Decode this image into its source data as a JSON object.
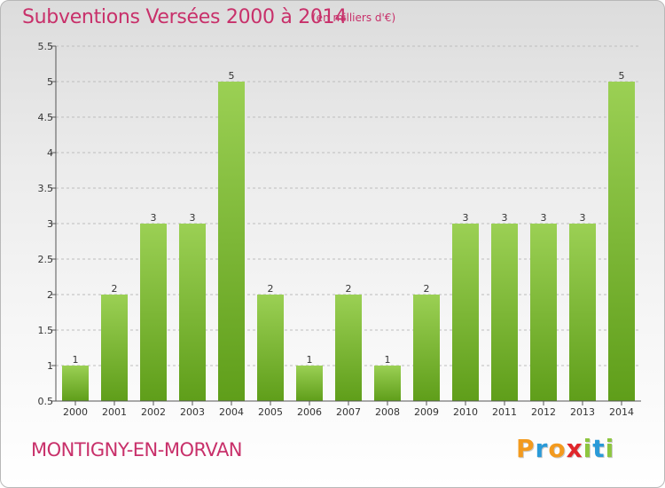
{
  "header": {
    "title": "Subventions Versées 2000 à 2014",
    "unit": "(en milliers d'€)"
  },
  "footer": {
    "commune": "MONTIGNY-EN-MORVAN",
    "logo_letters": [
      "P",
      "r",
      "o",
      "x",
      "i",
      "t",
      "i"
    ]
  },
  "colors": {
    "title": "#c8306a",
    "bar_top": "#9bd054",
    "bar_bottom": "#5f9e1a",
    "grid": "#bdbdbd",
    "logo": [
      "#f39a1e",
      "#2a9ad8",
      "#f39a1e",
      "#e0262b",
      "#8dc63f",
      "#2a9ad8",
      "#8dc63f"
    ]
  },
  "chart_data": {
    "type": "bar",
    "categories": [
      "2000",
      "2001",
      "2002",
      "2003",
      "2004",
      "2005",
      "2006",
      "2007",
      "2008",
      "2009",
      "2010",
      "2011",
      "2012",
      "2013",
      "2014"
    ],
    "values": [
      1,
      2,
      3,
      3,
      5,
      2,
      1,
      2,
      1,
      2,
      3,
      3,
      3,
      3,
      5
    ],
    "title": "Subventions Versées 2000 à 2014",
    "subtitle": "(en milliers d'€)",
    "ylim": [
      0.5,
      5.5
    ],
    "yticks": [
      "0.5",
      "1",
      "1.5",
      "2",
      "2.5",
      "3",
      "3.5",
      "4",
      "4.5",
      "5",
      "5.5"
    ],
    "grid": "horizontal dashed",
    "legend": "none"
  }
}
